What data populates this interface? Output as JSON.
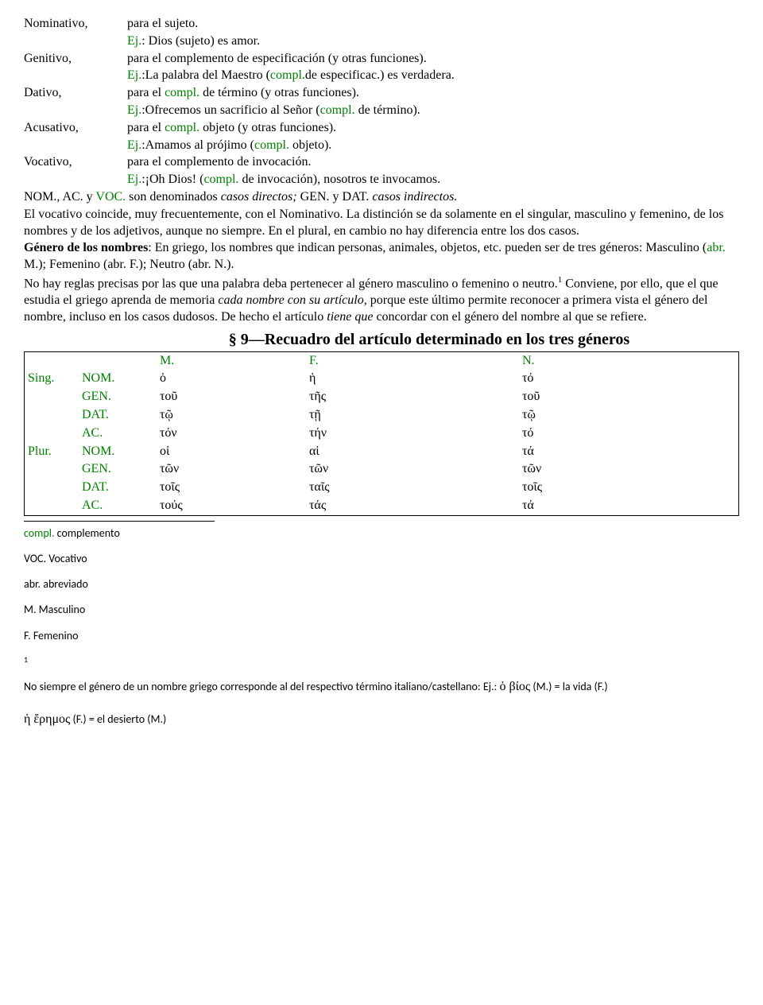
{
  "cases": [
    {
      "label": "Nominativo,",
      "desc": "para el sujeto.",
      "ej_prefix": "Ej.",
      "ej_rest": ": Dios (sujeto) es amor."
    },
    {
      "label": "Genitivo,",
      "desc": "para el complemento de especificación (y otras funciones).",
      "ej_prefix": "Ej.",
      "ej_mid1": ":La palabra del Maestro (",
      "ej_g": "compl.",
      "ej_mid2": "de especificac.) es verdadera."
    },
    {
      "label": "Dativo,",
      "desc_pre": "para el ",
      "desc_g": "compl.",
      "desc_post": " de término (y otras funciones).",
      "ej_prefix": "Ej.",
      "ej_mid1": ":Ofrecemos un sacrificio al Señor (",
      "ej_g": "compl.",
      "ej_mid2": " de término)."
    },
    {
      "label": "Acusativo,",
      "desc_pre": "para el ",
      "desc_g": "compl.",
      "desc_post": " objeto (y otras funciones).",
      "ej_prefix": "Ej.",
      "ej_mid1": ":Amamos al prójimo (",
      "ej_g": "compl.",
      "ej_mid2": " objeto)."
    },
    {
      "label": "Vocativo,",
      "desc": "para el complemento de invocación.",
      "ej_prefix": "Ej.",
      "ej_mid1": ":¡Oh Dios! (",
      "ej_g": "compl.",
      "ej_mid2": " de invocación), nosotros te invocamos."
    }
  ],
  "p1a": "NOM., AC. y ",
  "p1b": "VOC.",
  "p1c": " son denominados ",
  "p1d": "casos directos;",
  "p1e": " GEN. y DAT. ",
  "p1f": "casos indirectos.",
  "p2": "El vocativo coincide, muy frecuentemente, con el Nominativo. La distinción se da solamente en el singular, masculino y femenino, de los nombres y de los adjetivos, aunque no siempre. En el plural, en cambio no hay diferencia entre los dos casos.",
  "p3a": "Género de los nombres",
  "p3b": ": En griego, los nombres que indican personas, animales, objetos, etc. pueden ser de tres géneros: Masculino (",
  "p3c": "abr.",
  "p3d": " M.); Femenino (abr. F.); Neutro (abr. N.).",
  "p4a": "No hay reglas precisas por las que una palabra deba pertenecer al género masculino o femenino o neutro.",
  "p4sup": "1",
  "p4b": " Conviene, por ello, que el que estudia el griego aprenda de memoria ",
  "p4c": "cada nombre con su artículo,",
  "p4d": " porque este último permite reconocer a primera vista el género del nombre, incluso en los casos dudosos. De hecho el artículo ",
  "p4e": "tiene que",
  "p4f": " concordar con el género del nombre al que se refiere.",
  "section_title": "§ 9—Recuadro del artículo determinado en los tres géneros",
  "headers": {
    "m": "M.",
    "f": "F.",
    "n": "N."
  },
  "table": {
    "sing": "Sing.",
    "plur": "Plur.",
    "rows": [
      {
        "num": "Sing.",
        "case": "NOM.",
        "m": "ὁ",
        "f": "ἡ",
        "n": "τό"
      },
      {
        "num": "",
        "case": "GEN.",
        "m": "τοῦ",
        "f": "τῆς",
        "n": "τοῦ"
      },
      {
        "num": "",
        "case": "DAT.",
        "m": "τῷ",
        "f": "τῇ",
        "n": "τῷ"
      },
      {
        "num": "",
        "case": "AC.",
        "m": "τόν",
        "f": "τήν",
        "n": "τό"
      },
      {
        "num": "Plur.",
        "case": "NOM.",
        "m": "οἱ",
        "f": "αἱ",
        "n": "τά"
      },
      {
        "num": "",
        "case": "GEN.",
        "m": "τῶν",
        "f": "τῶν",
        "n": "τῶν"
      },
      {
        "num": "",
        "case": "DAT.",
        "m": "τοῖς",
        "f": "ταῖς",
        "n": "τοῖς"
      },
      {
        "num": "",
        "case": "AC.",
        "m": "τούς",
        "f": "τάς",
        "n": "τά"
      }
    ]
  },
  "fn": {
    "compl_g": "compl.",
    "compl_t": " complemento",
    "voc": "VOC. Vocativo",
    "abr": "abr. abreviado",
    "m": "M. Masculino",
    "f": "F. Femenino",
    "one": "1",
    "note_a": "No siempre el género de un nombre griego corresponde al del respectivo término italiano/castellano: Ej.: ",
    "note_b": "ὁ βίος",
    "note_c": " (M.) = la vida (F.)",
    "note2_a": "ἡ ἔρημος",
    "note2_b": " (F.) = el desierto (M.)"
  }
}
